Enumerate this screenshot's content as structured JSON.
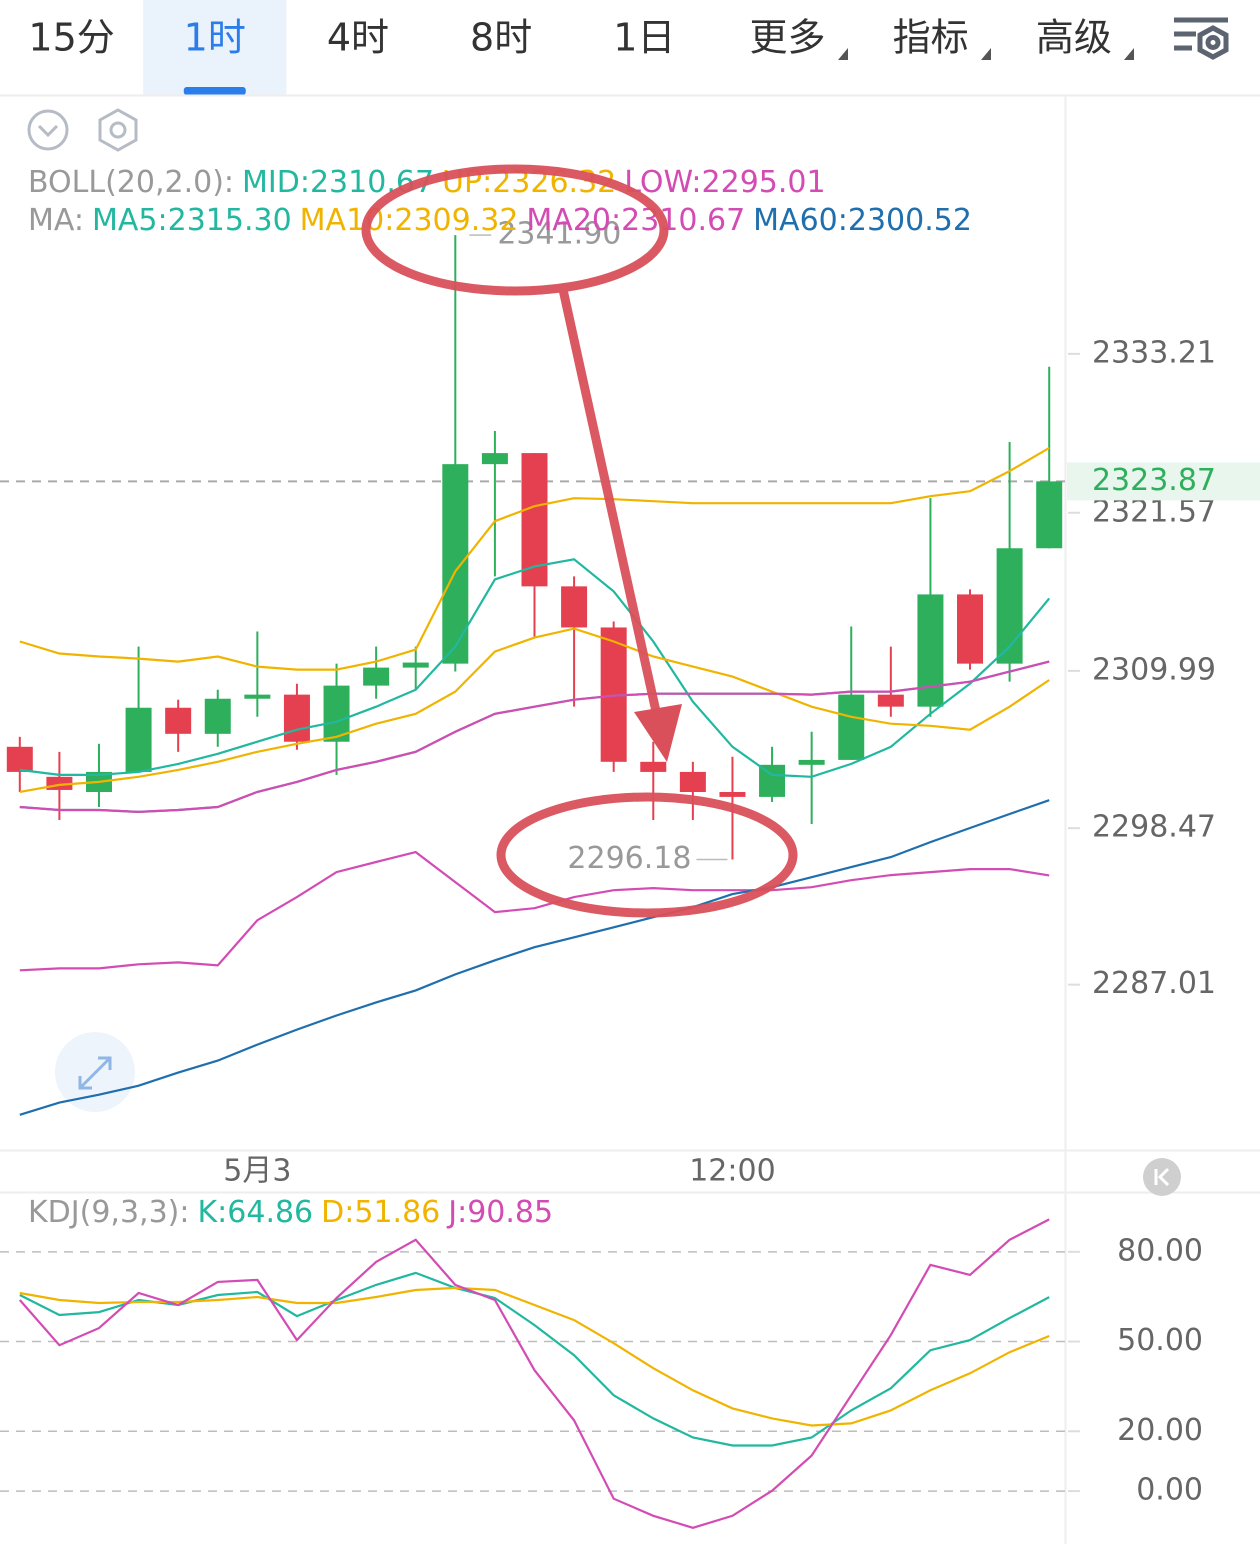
{
  "tabs": [
    "15分",
    "1时",
    "4时",
    "8时",
    "1日",
    "更多",
    "指标",
    "高级"
  ],
  "selected_tab": 1,
  "chart_data": [
    {
      "type": "candlestick",
      "categories": [
        null,
        null,
        null,
        null,
        null,
        null,
        "5月3",
        null,
        null,
        null,
        null,
        null,
        null,
        null,
        null,
        null,
        null,
        null,
        "12:00",
        null,
        null,
        null,
        null,
        null,
        null,
        null,
        null
      ],
      "open": [
        2304.43,
        2302.23,
        2301.12,
        2302.59,
        2307.29,
        2305.38,
        2307.95,
        2308.25,
        2304.8,
        2308.91,
        2310.23,
        2310.52,
        2325.13,
        2325.94,
        2316.18,
        2313.17,
        2303.33,
        2302.59,
        2301.12,
        2300.76,
        2303.11,
        2303.47,
        2308.25,
        2307.37,
        2315.59,
        2310.52,
        2318.97
      ],
      "high": [
        2305.16,
        2304.06,
        2304.65,
        2311.77,
        2307.88,
        2308.61,
        2312.87,
        2309.05,
        2310.52,
        2311.77,
        2311.77,
        2341.9,
        2327.56,
        2325.94,
        2316.91,
        2313.61,
        2304.8,
        2303.33,
        2303.7,
        2304.43,
        2305.53,
        2313.24,
        2311.77,
        2322.64,
        2315.96,
        2326.75,
        2332.26
      ],
      "low": [
        2301.12,
        2299.07,
        2300.02,
        2302.59,
        2304.06,
        2304.43,
        2306.63,
        2304.21,
        2302.37,
        2307.95,
        2308.61,
        2309.94,
        2316.91,
        2312.5,
        2307.37,
        2302.59,
        2299.07,
        2299.07,
        2296.18,
        2300.39,
        2298.78,
        2303.47,
        2306.63,
        2306.63,
        2310.08,
        2309.2,
        2318.97
      ],
      "close": [
        2302.59,
        2301.27,
        2302.59,
        2307.29,
        2305.38,
        2307.95,
        2308.25,
        2304.8,
        2308.91,
        2310.23,
        2310.6,
        2325.13,
        2325.94,
        2316.18,
        2313.17,
        2303.33,
        2302.59,
        2301.12,
        2300.76,
        2303.11,
        2303.47,
        2308.25,
        2307.37,
        2315.59,
        2310.52,
        2318.97,
        2323.87
      ],
      "up_color": "#2eaf5c",
      "down_color": "#e5404f",
      "indicators": [
        {
          "label": "BOLL(20,2.0):",
          "series": [
            {
              "name": "MID:2310.67",
              "color": "#22b8a0",
              "values": [
                2300.02,
                2299.8,
                2299.8,
                2299.66,
                2299.8,
                2300.02,
                2301.13,
                2301.86,
                2302.74,
                2303.33,
                2304.06,
                2305.53,
                2306.85,
                2307.37,
                2307.88,
                2308.17,
                2308.32,
                2308.32,
                2308.32,
                2308.32,
                2308.25,
                2308.47,
                2308.47,
                2308.83,
                2309.2,
                2309.94,
                2310.67
              ]
            },
            {
              "name": "UP:2326.32",
              "color": "#f0b400",
              "values": [
                2312.14,
                2311.26,
                2311.04,
                2310.89,
                2310.67,
                2311.04,
                2310.3,
                2310.08,
                2310.08,
                2310.67,
                2311.55,
                2317.28,
                2320.95,
                2322.05,
                2322.64,
                2322.56,
                2322.42,
                2322.27,
                2322.27,
                2322.27,
                2322.27,
                2322.27,
                2322.27,
                2322.78,
                2323.15,
                2324.62,
                2326.32
              ]
            },
            {
              "name": "LOW:2295.01",
              "color": "#d34cb3",
              "values": [
                2288.06,
                2288.2,
                2288.2,
                2288.5,
                2288.64,
                2288.42,
                2291.73,
                2293.42,
                2295.25,
                2295.99,
                2296.72,
                2294.52,
                2292.32,
                2292.61,
                2293.42,
                2293.93,
                2294.08,
                2293.93,
                2293.93,
                2293.93,
                2294.15,
                2294.66,
                2295.03,
                2295.25,
                2295.47,
                2295.47,
                2295.01
              ]
            }
          ]
        },
        {
          "label": "MA:",
          "series": [
            {
              "name": "MA5:2315.30",
              "color": "#22b8a0",
              "values": [
                2302.74,
                2302.37,
                2302.37,
                2302.59,
                2303.18,
                2303.92,
                2304.8,
                2305.68,
                2306.27,
                2307.37,
                2308.61,
                2311.77,
                2316.69,
                2317.64,
                2318.16,
                2315.81,
                2312.14,
                2307.73,
                2304.43,
                2302.37,
                2302.23,
                2303.18,
                2304.43,
                2306.85,
                2309.06,
                2311.77,
                2315.3
              ]
            },
            {
              "name": "MA10:2309.32",
              "color": "#f0b400",
              "values": [
                2301.13,
                2301.64,
                2301.86,
                2302.23,
                2302.74,
                2303.33,
                2304.06,
                2304.65,
                2305.16,
                2306.12,
                2306.85,
                2308.47,
                2311.4,
                2312.43,
                2313.09,
                2312.14,
                2311.04,
                2310.3,
                2309.57,
                2308.47,
                2307.37,
                2306.63,
                2306.12,
                2305.97,
                2305.68,
                2307.37,
                2309.32
              ]
            },
            {
              "name": "MA20:2310.67",
              "color": "#d34cb3",
              "values": [
                2300.02,
                2299.8,
                2299.8,
                2299.66,
                2299.8,
                2300.02,
                2301.13,
                2301.86,
                2302.74,
                2303.33,
                2304.06,
                2305.53,
                2306.85,
                2307.37,
                2307.88,
                2308.17,
                2308.32,
                2308.32,
                2308.32,
                2308.32,
                2308.25,
                2308.47,
                2308.47,
                2308.83,
                2309.2,
                2309.94,
                2310.67
              ]
            },
            {
              "name": "MA60:2300.52",
              "color": "#1f6fae",
              "values": [
                2277.48,
                2278.37,
                2278.95,
                2279.61,
                2280.57,
                2281.45,
                2282.62,
                2283.72,
                2284.75,
                2285.71,
                2286.59,
                2287.76,
                2288.79,
                2289.75,
                2290.48,
                2291.21,
                2291.95,
                2292.68,
                2293.64,
                2294.15,
                2294.88,
                2295.62,
                2296.35,
                2297.45,
                2298.48,
                2299.51,
                2300.52
              ]
            }
          ]
        }
      ],
      "last_price": 2323.87,
      "annotations": [
        {
          "value": 2341.9,
          "label": "2341.90"
        },
        {
          "value": 2296.18,
          "label": "2296.18"
        }
      ],
      "ylim": [
        2274.9,
        2351.8
      ],
      "yticks": [
        2333.21,
        2321.57,
        2309.99,
        2298.47,
        2287.01
      ]
    },
    {
      "type": "line",
      "title": "KDJ(9,3,3):",
      "series": [
        {
          "name": "K:64.86",
          "color": "#22b8a0",
          "values": [
            65.57,
            58.86,
            59.86,
            63.89,
            62.21,
            65.57,
            66.58,
            58.52,
            63.89,
            68.93,
            72.95,
            67.92,
            64.56,
            55.5,
            45.43,
            32.01,
            24.29,
            17.91,
            15.23,
            15.23,
            17.91,
            26.98,
            34.36,
            47.11,
            50.47,
            57.85,
            64.86
          ]
        },
        {
          "name": "D:51.86",
          "color": "#f0b400",
          "values": [
            66.24,
            63.89,
            62.88,
            63.22,
            63.22,
            63.89,
            64.9,
            62.88,
            62.88,
            64.9,
            67.25,
            67.92,
            67.25,
            62.21,
            57.18,
            49.46,
            41.07,
            33.69,
            27.65,
            24.29,
            21.94,
            22.61,
            26.98,
            33.69,
            39.39,
            46.44,
            51.86
          ]
        },
        {
          "name": "J:90.85",
          "color": "#d34cb3",
          "values": [
            63.89,
            48.79,
            54.49,
            66.24,
            62.21,
            69.93,
            70.6,
            50.47,
            64.56,
            76.64,
            84.03,
            68.93,
            63.89,
            40.4,
            23.62,
            -2.56,
            -8.26,
            -12.29,
            -8.26,
            0.13,
            11.87,
            32.01,
            52.15,
            75.64,
            72.28,
            84.03,
            90.85
          ]
        }
      ],
      "ylim": [
        -17.7,
        99
      ],
      "yticks": [
        {
          "value": 80,
          "label": "80.00"
        },
        {
          "value": 50,
          "label": "50.00"
        },
        {
          "value": 20,
          "label": "20.00"
        },
        {
          "value": 0,
          "label": "0.00"
        }
      ],
      "grid": true
    }
  ]
}
